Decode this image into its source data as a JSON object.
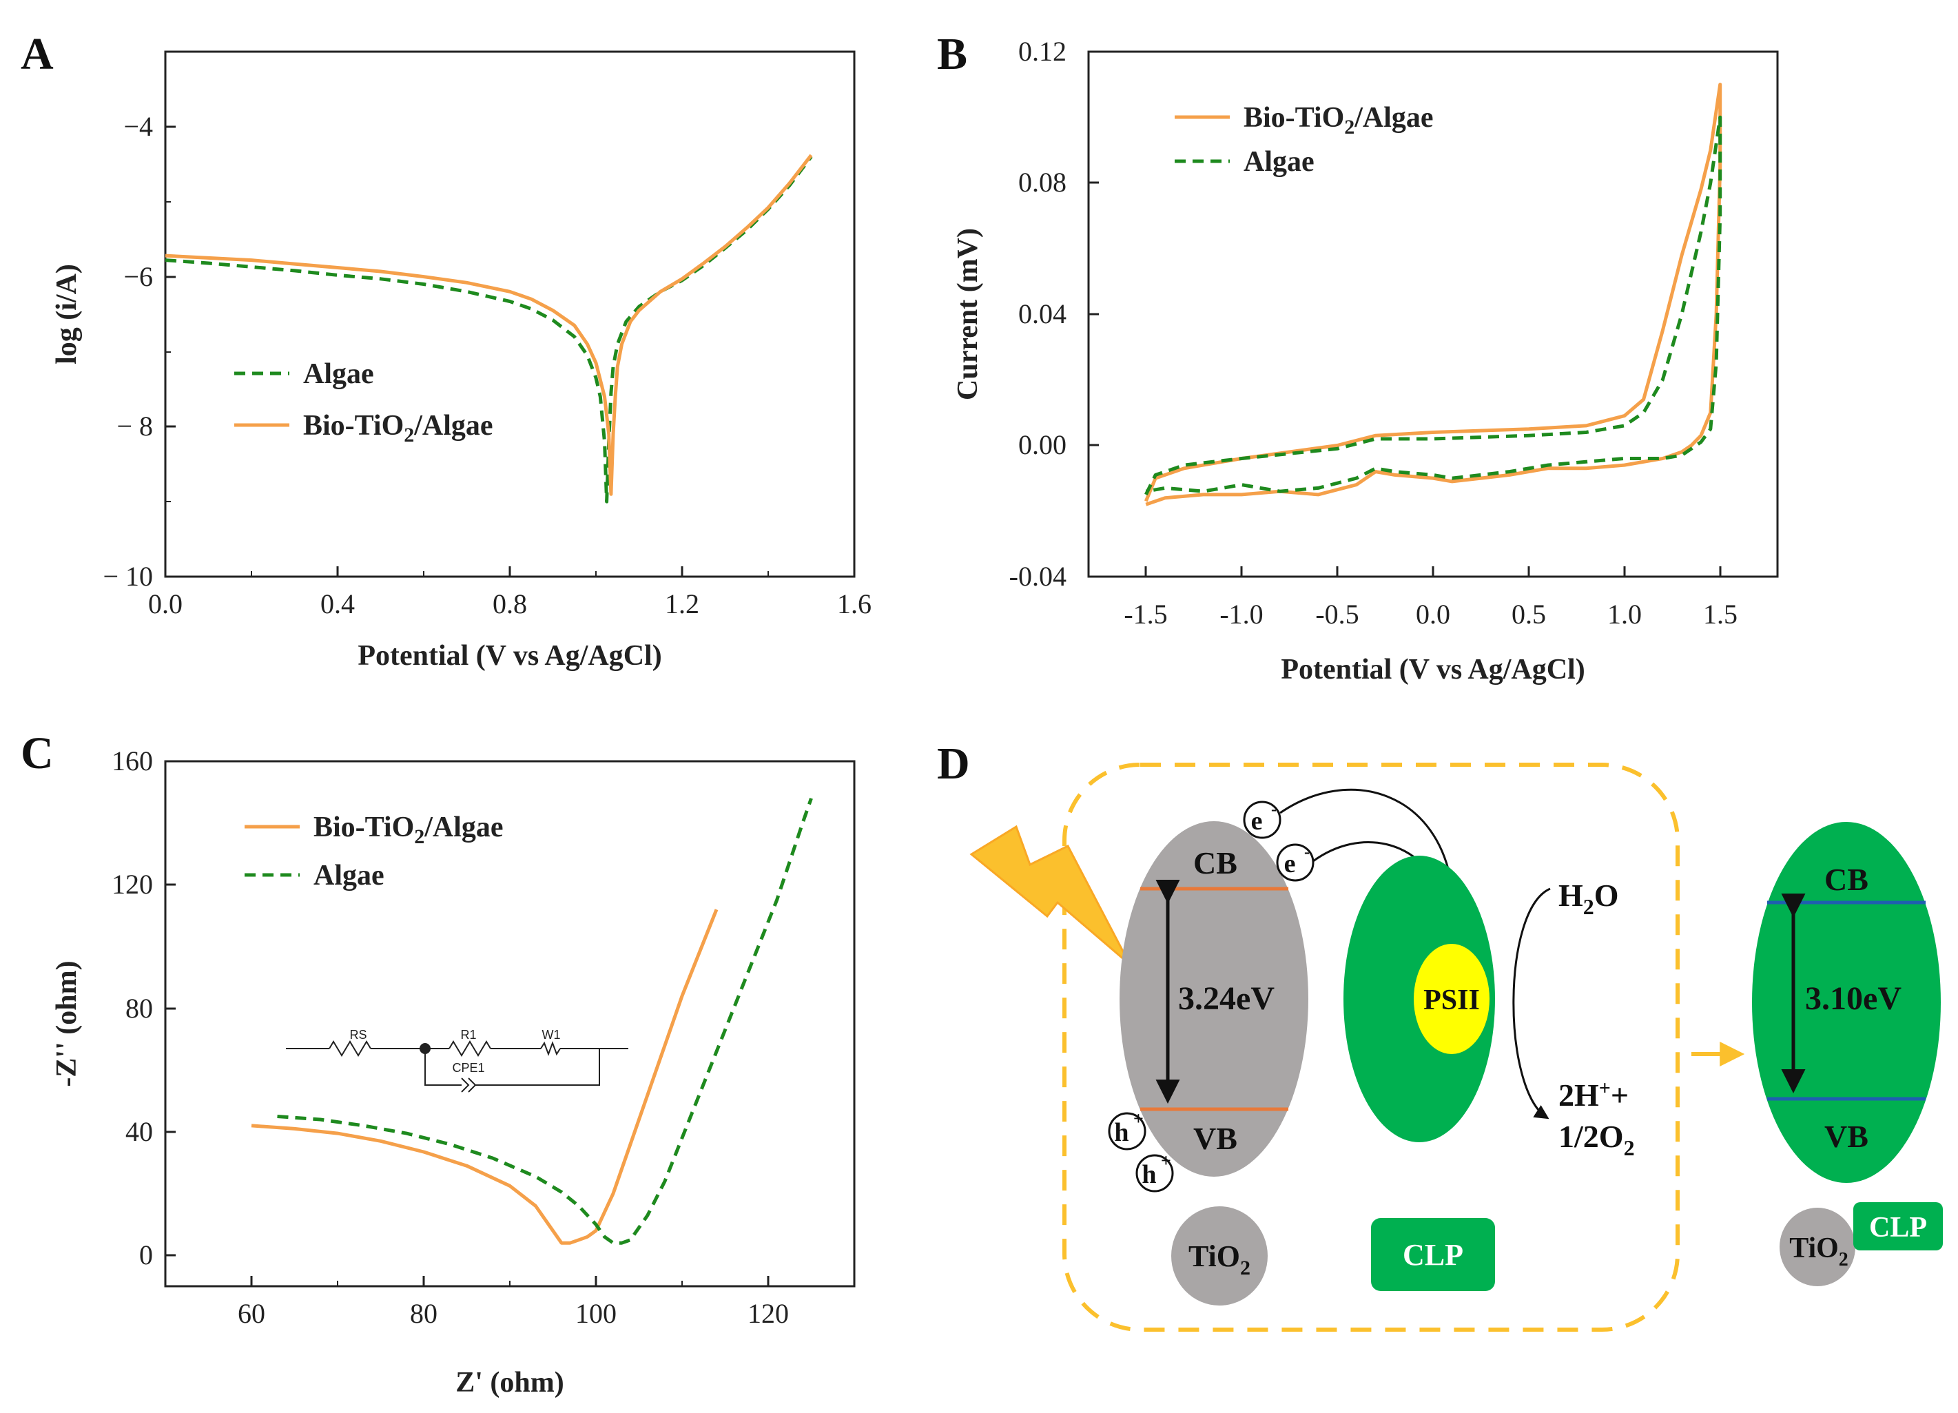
{
  "chart_data": [
    {
      "panel": "A",
      "type": "line",
      "xlabel": "Potential (V vs Ag/AgCl)",
      "ylabel": "log (i/A)",
      "xlim": [
        0.0,
        1.6
      ],
      "ylim": [
        -10,
        -3
      ],
      "xticks": [
        "0.0",
        "0.4",
        "0.8",
        "1.2",
        "1.6"
      ],
      "yticks": [
        "−4",
        "−6",
        "− 8",
        "− 10"
      ],
      "legend_position": "center-left",
      "series": [
        {
          "name": "Algae",
          "style": "dashed",
          "x": [
            0.0,
            0.1,
            0.2,
            0.3,
            0.4,
            0.5,
            0.6,
            0.7,
            0.8,
            0.85,
            0.9,
            0.95,
            0.98,
            1.0,
            1.01,
            1.02,
            1.025,
            1.03,
            1.035,
            1.04,
            1.05,
            1.07,
            1.1,
            1.15,
            1.2,
            1.25,
            1.3,
            1.35,
            1.4,
            1.45,
            1.5
          ],
          "y": [
            -5.78,
            -5.82,
            -5.87,
            -5.92,
            -5.98,
            -6.03,
            -6.1,
            -6.2,
            -6.33,
            -6.43,
            -6.58,
            -6.8,
            -7.05,
            -7.35,
            -7.6,
            -8.2,
            -9.0,
            -8.2,
            -7.55,
            -7.2,
            -6.9,
            -6.6,
            -6.4,
            -6.2,
            -6.05,
            -5.85,
            -5.62,
            -5.38,
            -5.1,
            -4.78,
            -4.4
          ]
        },
        {
          "name": "Bio-TiO₂/Algae",
          "style": "solid",
          "x": [
            0.0,
            0.1,
            0.2,
            0.3,
            0.4,
            0.5,
            0.6,
            0.7,
            0.8,
            0.85,
            0.9,
            0.95,
            0.98,
            1.0,
            1.02,
            1.03,
            1.035,
            1.04,
            1.045,
            1.05,
            1.06,
            1.08,
            1.1,
            1.15,
            1.2,
            1.25,
            1.3,
            1.35,
            1.4,
            1.45,
            1.5
          ],
          "y": [
            -5.72,
            -5.75,
            -5.78,
            -5.83,
            -5.88,
            -5.93,
            -6.0,
            -6.08,
            -6.2,
            -6.3,
            -6.45,
            -6.65,
            -6.9,
            -7.15,
            -7.6,
            -8.1,
            -8.9,
            -8.1,
            -7.6,
            -7.2,
            -6.9,
            -6.6,
            -6.45,
            -6.2,
            -6.03,
            -5.82,
            -5.6,
            -5.35,
            -5.08,
            -4.75,
            -4.38
          ]
        }
      ]
    },
    {
      "panel": "B",
      "type": "line",
      "xlabel": "Potential (V vs Ag/AgCl)",
      "ylabel": "Current (mV)",
      "xlim": [
        -1.8,
        1.8
      ],
      "ylim": [
        -0.04,
        0.12
      ],
      "xticks": [
        "-1.5",
        "-1.0",
        "-0.5",
        "0.0",
        "0.5",
        "1.0",
        "1.5"
      ],
      "yticks": [
        "0.12",
        "0.08",
        "0.04",
        "0.00",
        "-0.04"
      ],
      "legend_position": "top-left",
      "series": [
        {
          "name": "Bio-TiO₂/Algae",
          "style": "solid",
          "x": [
            -1.5,
            -1.45,
            -1.3,
            -1.0,
            -0.5,
            -0.3,
            0.0,
            0.5,
            0.8,
            1.0,
            1.1,
            1.2,
            1.3,
            1.4,
            1.45,
            1.5,
            1.5,
            1.48,
            1.45,
            1.4,
            1.35,
            1.3,
            1.2,
            1.0,
            0.8,
            0.6,
            0.4,
            0.1,
            0.0,
            -0.2,
            -0.3,
            -0.4,
            -0.6,
            -0.8,
            -1.0,
            -1.2,
            -1.4,
            -1.5
          ],
          "y": [
            -0.017,
            -0.01,
            -0.007,
            -0.004,
            0.0,
            0.003,
            0.004,
            0.005,
            0.006,
            0.009,
            0.014,
            0.035,
            0.058,
            0.078,
            0.09,
            0.11,
            0.085,
            0.04,
            0.01,
            0.003,
            0.0,
            -0.002,
            -0.004,
            -0.006,
            -0.007,
            -0.007,
            -0.009,
            -0.011,
            -0.01,
            -0.009,
            -0.008,
            -0.012,
            -0.015,
            -0.014,
            -0.015,
            -0.015,
            -0.016,
            -0.018
          ]
        },
        {
          "name": "Algae",
          "style": "dashed",
          "x": [
            -1.5,
            -1.45,
            -1.3,
            -1.0,
            -0.5,
            -0.3,
            0.0,
            0.5,
            0.8,
            1.0,
            1.1,
            1.2,
            1.3,
            1.4,
            1.45,
            1.5,
            1.5,
            1.48,
            1.45,
            1.4,
            1.35,
            1.3,
            1.2,
            1.0,
            0.8,
            0.6,
            0.4,
            0.1,
            0.0,
            -0.2,
            -0.3,
            -0.4,
            -0.6,
            -0.8,
            -1.0,
            -1.2,
            -1.4,
            -1.5
          ],
          "y": [
            -0.015,
            -0.009,
            -0.006,
            -0.004,
            -0.001,
            0.002,
            0.002,
            0.003,
            0.004,
            0.006,
            0.01,
            0.02,
            0.04,
            0.065,
            0.08,
            0.1,
            0.07,
            0.025,
            0.005,
            0.001,
            -0.001,
            -0.003,
            -0.004,
            -0.004,
            -0.005,
            -0.006,
            -0.008,
            -0.01,
            -0.009,
            -0.008,
            -0.007,
            -0.01,
            -0.013,
            -0.014,
            -0.012,
            -0.014,
            -0.013,
            -0.014
          ]
        }
      ]
    },
    {
      "panel": "C",
      "type": "line",
      "xlabel": "Z' (ohm)",
      "ylabel": "-Z'' (ohm)",
      "xlim": [
        50,
        130
      ],
      "ylim": [
        -10,
        160
      ],
      "xticks": [
        "60",
        "80",
        "100",
        "120"
      ],
      "yticks": [
        "160",
        "120",
        "80",
        "40",
        "0"
      ],
      "legend_position": "top-left",
      "inset": {
        "labels": [
          "RS",
          "R1",
          "W1",
          "CPE1"
        ]
      },
      "series": [
        {
          "name": "Bio-TiO₂/Algae",
          "style": "solid",
          "x": [
            60,
            65,
            70,
            75,
            80,
            85,
            90,
            93,
            95,
            96,
            97,
            98,
            99,
            100,
            102,
            104,
            106,
            108,
            110,
            112,
            114
          ],
          "y": [
            42,
            41,
            39.5,
            37,
            33.5,
            29,
            22.5,
            16,
            8,
            4,
            4,
            5,
            6,
            8,
            20,
            36,
            52,
            68,
            84,
            98,
            112
          ]
        },
        {
          "name": "Algae",
          "style": "dashed",
          "x": [
            63,
            68,
            73,
            78,
            83,
            88,
            93,
            96,
            98,
            100,
            101,
            102,
            103,
            104,
            106,
            108,
            110,
            112,
            115,
            118,
            121,
            124,
            125
          ],
          "y": [
            45,
            44,
            42,
            39.5,
            36,
            31.5,
            25.5,
            20.5,
            16,
            10,
            6,
            4,
            4,
            5,
            13,
            24,
            38,
            52,
            73,
            94,
            115,
            140,
            148
          ]
        }
      ]
    }
  ],
  "panels": {
    "A": {
      "label": "A",
      "legend": [
        {
          "text": "Algae"
        },
        {
          "main": "Bio-TiO",
          "sub": "2",
          "rest": "/Algae"
        }
      ]
    },
    "B": {
      "label": "B",
      "legend": [
        {
          "main": "Bio-TiO",
          "sub": "2",
          "rest": "/Algae"
        },
        {
          "text": "Algae"
        }
      ]
    },
    "C": {
      "label": "C",
      "legend": [
        {
          "main": "Bio-TiO",
          "sub": "2",
          "rest": "/Algae"
        },
        {
          "text": "Algae"
        }
      ]
    },
    "D": {
      "label": "D",
      "tio2_band": {
        "cb": "CB",
        "vb": "VB",
        "gap": "3.24eV"
      },
      "electron": {
        "base": "e",
        "sup": "-"
      },
      "hole": {
        "base": "h",
        "sup": "+"
      },
      "psii": "PSII",
      "water": {
        "base": "H",
        "sub": "2",
        "rest": "O"
      },
      "products_line1": {
        "base": "2H",
        "sup": "+",
        "rest": "+"
      },
      "products_line2": {
        "base": "1/2O",
        "sub": "2"
      },
      "tio2_label": {
        "base": "TiO",
        "sub": "2"
      },
      "clp_label": "CLP",
      "composite_band": {
        "cb": "CB",
        "vb": "VB",
        "gap": "3.10eV"
      }
    }
  },
  "colors": {
    "orange": "#f5a04a",
    "green": "#1e8a1e",
    "dark_green": "#00b050",
    "gray": "#a9a6a6",
    "yellow": "#ffff00",
    "gold": "#fbc02d"
  }
}
